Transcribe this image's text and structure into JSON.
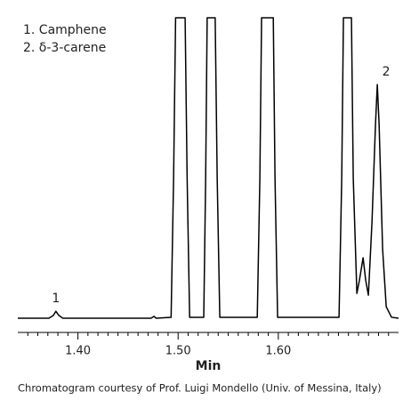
{
  "chart_data": {
    "type": "line",
    "x_label": "Min",
    "caption": "Chromatogram courtesy of Prof. Luigi Mondello (Univ. of Messina, Italy)",
    "notes": [
      "1.  Camphene",
      "2.  δ-3-carene"
    ],
    "annotations": [
      {
        "text": "1",
        "x": 1.378,
        "y": 2.9
      },
      {
        "text": "2",
        "x": 1.6988,
        "y": 77.9
      }
    ],
    "color": "#000000",
    "x": [
      1.34,
      1.371,
      1.3755,
      1.378,
      1.381,
      1.385,
      1.473,
      1.476,
      1.478,
      1.493,
      1.4955,
      1.4975,
      1.507,
      1.509,
      1.5115,
      1.5256,
      1.5275,
      1.529,
      1.537,
      1.539,
      1.5416,
      1.579,
      1.5816,
      1.5833,
      1.595,
      1.5967,
      1.5993,
      1.6606,
      1.6633,
      1.665,
      1.673,
      1.6748,
      1.6784,
      1.681,
      1.6846,
      1.6872,
      1.6899,
      1.6935,
      1.697,
      1.6988,
      1.7006,
      1.7041,
      1.7077,
      1.713,
      1.72
    ],
    "values": [
      0.6,
      0.6,
      1.5,
      2.9,
      1.5,
      0.6,
      0.6,
      1.2,
      0.6,
      0.9,
      47,
      100,
      100,
      47,
      0.9,
      0.9,
      47,
      100,
      100,
      47,
      0.9,
      0.9,
      47,
      100,
      100,
      47,
      0.9,
      0.9,
      47,
      100,
      100,
      47,
      8.8,
      13.2,
      20.6,
      13.2,
      8.2,
      32.4,
      64.7,
      77.9,
      64.7,
      23.5,
      4.4,
      0.9,
      0.6
    ],
    "xlim": [
      1.34,
      1.72
    ],
    "ylim": [
      0,
      100
    ],
    "xticks": [
      {
        "value": 1.4,
        "label": "1.40"
      },
      {
        "value": 1.5,
        "label": "1.50"
      },
      {
        "value": 1.6,
        "label": "1.60"
      }
    ],
    "xminorticks": [
      1.35,
      1.36,
      1.37,
      1.38,
      1.39,
      1.41,
      1.42,
      1.43,
      1.44,
      1.45,
      1.46,
      1.47,
      1.48,
      1.49,
      1.51,
      1.52,
      1.53,
      1.54,
      1.55,
      1.56,
      1.57,
      1.58,
      1.59,
      1.61,
      1.62,
      1.63,
      1.64,
      1.65,
      1.66,
      1.67,
      1.68,
      1.69,
      1.7,
      1.71
    ]
  }
}
